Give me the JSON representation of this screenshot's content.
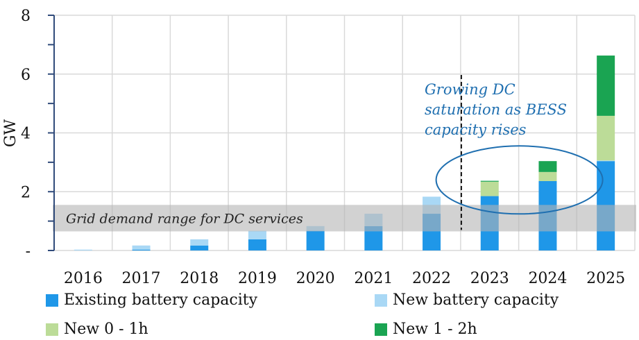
{
  "chart_data": {
    "type": "bar",
    "stacked": true,
    "title": "",
    "xlabel": "",
    "ylabel": "GW",
    "ylim": [
      0,
      8
    ],
    "yticks": [
      {
        "value": 0,
        "label": "-"
      },
      {
        "value": 2,
        "label": "2"
      },
      {
        "value": 4,
        "label": "4"
      },
      {
        "value": 6,
        "label": "6"
      },
      {
        "value": 8,
        "label": "8"
      }
    ],
    "grid": true,
    "categories": [
      "2016",
      "2017",
      "2018",
      "2019",
      "2020",
      "2021",
      "2022",
      "2023",
      "2024",
      "2025"
    ],
    "series": [
      {
        "name": "Existing battery capacity",
        "color": "#1f97e8",
        "values": [
          0,
          0.03,
          0.17,
          0.38,
          0.67,
          0.83,
          1.25,
          1.85,
          2.36,
          3.04
        ]
      },
      {
        "name": "New battery capacity",
        "color": "#a9d8f5",
        "values": [
          0.03,
          0.14,
          0.21,
          0.29,
          0.16,
          0.42,
          0.58,
          0,
          0,
          0.02
        ]
      },
      {
        "name": "New 0 - 1h",
        "color": "#bcdc98",
        "values": [
          0,
          0,
          0,
          0,
          0,
          0,
          0,
          0.49,
          0.31,
          1.52
        ]
      },
      {
        "name": "New 1 - 2h",
        "color": "#1aa452",
        "values": [
          0,
          0,
          0,
          0,
          0,
          0,
          0,
          0.03,
          0.37,
          2.05
        ]
      }
    ],
    "band": {
      "label": "Grid demand range for DC services",
      "range": [
        0.65,
        1.55
      ],
      "color": "#b4b4b4"
    },
    "vline": {
      "between": [
        "2022",
        "2023"
      ],
      "style": "dashed"
    },
    "annotation": {
      "lines": [
        "Growing DC",
        "saturation as BESS",
        "capacity rises"
      ],
      "color": "#1f6fb0"
    },
    "ellipse": {
      "center_category_between": [
        "2023",
        "2024"
      ],
      "y_center": 2.4
    },
    "legend": {
      "placement": "bottom",
      "entries": [
        "Existing battery capacity",
        "New battery capacity",
        "New 0 - 1h",
        "New 1 - 2h"
      ]
    }
  }
}
